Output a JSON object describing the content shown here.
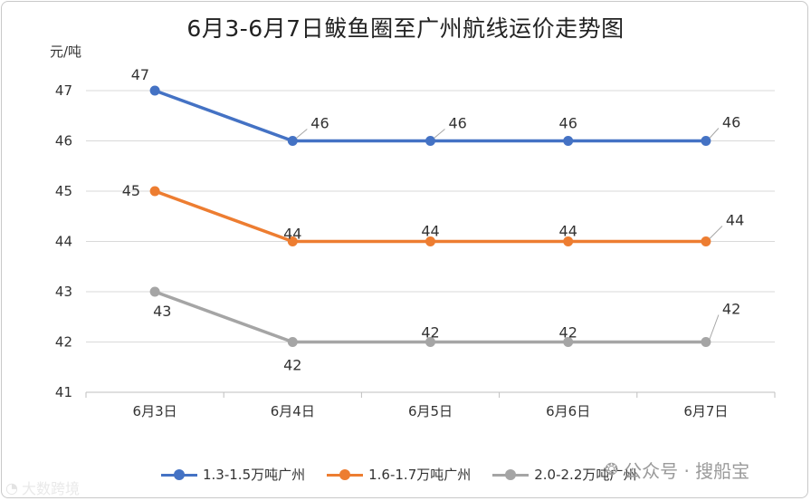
{
  "chart_data": {
    "type": "line",
    "title": "6月3-6月7日鲅鱼圈至广州航线运价走势图",
    "ylabel": "元/吨",
    "categories": [
      "6月3日",
      "6月4日",
      "6月5日",
      "6月6日",
      "6月7日"
    ],
    "ylim": [
      41,
      47
    ],
    "yticks": [
      41,
      42,
      43,
      44,
      45,
      46,
      47
    ],
    "grid": true,
    "legend_position": "bottom",
    "series": [
      {
        "name": "1.3-1.5万吨广州",
        "values": [
          47,
          46,
          46,
          46,
          46
        ],
        "color": "#4472C4"
      },
      {
        "name": "1.6-1.7万吨广州",
        "values": [
          45,
          44,
          44,
          44,
          44
        ],
        "color": "#ED7D31"
      },
      {
        "name": "2.0-2.2万吨广州",
        "values": [
          43,
          42,
          42,
          42,
          42
        ],
        "color": "#A5A5A5"
      }
    ]
  },
  "watermark": {
    "right_text": "公众号 · 搜船宝",
    "right_icon": "wechat-icon",
    "left_text": "大数跨境",
    "left_icon": "logo-icon"
  }
}
